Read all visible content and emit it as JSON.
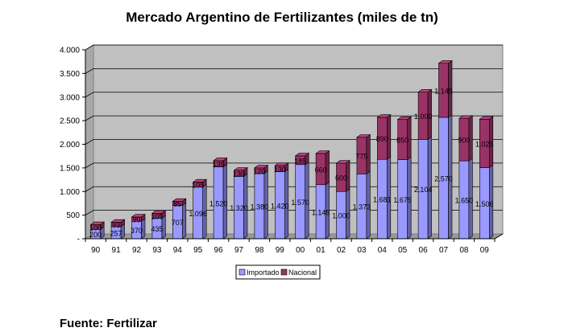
{
  "title": "Mercado Argentino de Fertilizantes (miles de tn)",
  "source": "Fuente: Fertilizar",
  "chart_data": {
    "type": "bar",
    "stacked": true,
    "three_d": true,
    "title": "Mercado Argentino de Fertilizantes (miles de tn)",
    "categories": [
      "90",
      "91",
      "92",
      "93",
      "94",
      "95",
      "96",
      "97",
      "98",
      "99",
      "00",
      "01",
      "02",
      "03",
      "04",
      "05",
      "06",
      "07",
      "08",
      "09"
    ],
    "series": [
      {
        "name": "Importado",
        "color": "#9999ff",
        "values": [
          200,
          257,
          370,
          435,
          707,
          1096,
          1520,
          1320,
          1380,
          1420,
          1570,
          1145,
          1000,
          1373,
          1681,
          1675,
          2104,
          2570,
          1650,
          1506
        ],
        "labels": [
          "200",
          "257",
          "370",
          "435",
          "707",
          "1.096",
          "1.520",
          "1.320",
          "1.380",
          "1.420",
          "1.570",
          "1.145",
          "1.000",
          "1.373",
          "1.681",
          "1.675",
          "2.104",
          "2.570",
          "1.650",
          "1.506"
        ]
      },
      {
        "name": "Nacional",
        "color": "#993366",
        "values": [
          100,
          93,
          90,
          105,
          85,
          105,
          135,
          130,
          120,
          130,
          185,
          660,
          600,
          775,
          890,
          850,
          1000,
          1145,
          900,
          1025
        ],
        "labels": [
          "100",
          "93",
          "90",
          "105",
          "85",
          "105",
          "135",
          "130",
          "120",
          "130",
          "185",
          "660",
          "600",
          "775",
          "890",
          "850",
          "1.000",
          "1.145",
          "900",
          "1.025"
        ]
      }
    ],
    "ylim": [
      0,
      4000
    ],
    "yticks": [
      0,
      500,
      1000,
      1500,
      2000,
      2500,
      3000,
      3500,
      4000
    ],
    "ytick_labels": [
      "-",
      "500",
      "1.000",
      "1.500",
      "2.000",
      "2.500",
      "3.000",
      "3.500",
      "4.000"
    ],
    "grid": true,
    "legend_position": "bottom"
  }
}
